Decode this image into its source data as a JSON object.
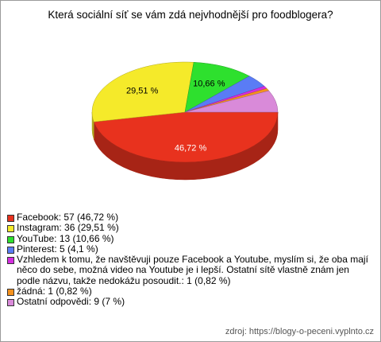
{
  "chart_data": {
    "type": "pie",
    "title": "Která sociální síť se vám zdá nejvhodnější pro foodblogera?",
    "categories": [
      "Facebook: 57 (46,72 %)",
      "Instagram: 36 (29,51 %)",
      "YouTube: 13 (10,66 %)",
      "Pinterest: 5 (4,1 %)",
      "Vzhledem k tomu, že navštěvuji pouze Facebook a Youtube, myslím si, že oba mají něco do sebe, možná video na Youtube je i lepší. Ostatní sítě vlastně znám jen podle názvu, takže nedokážu posoudit.: 1 (0,82 %)",
      "žádná: 1 (0,82 %)",
      "Ostatní odpovědi: 9 (7 %)"
    ],
    "values": [
      46.72,
      29.51,
      10.66,
      4.1,
      0.82,
      0.82,
      7
    ],
    "value_labels": [
      "46,72 %",
      "29,51 %",
      "10,66 %",
      null,
      null,
      null,
      null
    ],
    "colors": [
      "#e8321e",
      "#f5ea2a",
      "#2ee02e",
      "#5a7cf5",
      "#d52ee0",
      "#f5921e",
      "#d98ad9"
    ],
    "legend": "bottom-left",
    "source": "zdroj: https://blogy-o-peceni.vyplnto.cz"
  }
}
